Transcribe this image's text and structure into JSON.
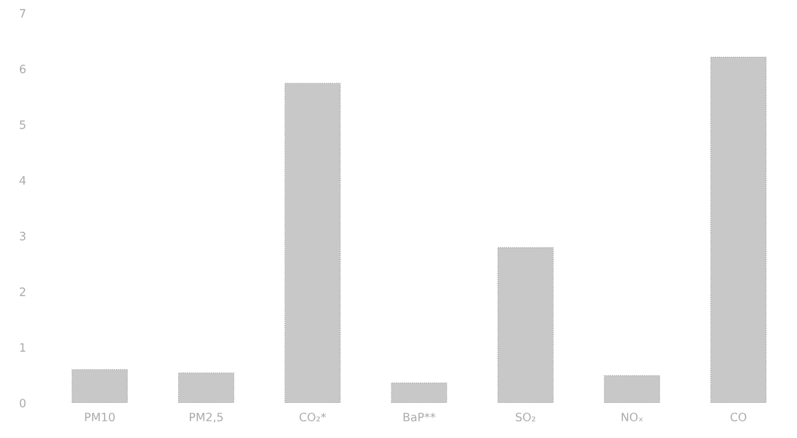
{
  "chart_data": {
    "type": "bar",
    "categories": [
      "PM10",
      "PM2,5",
      "CO₂*",
      "BaP**",
      "SO₂",
      "NOₓ",
      "CO"
    ],
    "values": [
      0.6,
      0.54,
      5.74,
      0.36,
      2.79,
      0.49,
      6.21
    ],
    "color": "#c8c8c8",
    "ylim": [
      0,
      7
    ],
    "yticks": [
      0,
      1,
      2,
      3,
      4,
      5,
      6,
      7
    ],
    "grid": false
  }
}
